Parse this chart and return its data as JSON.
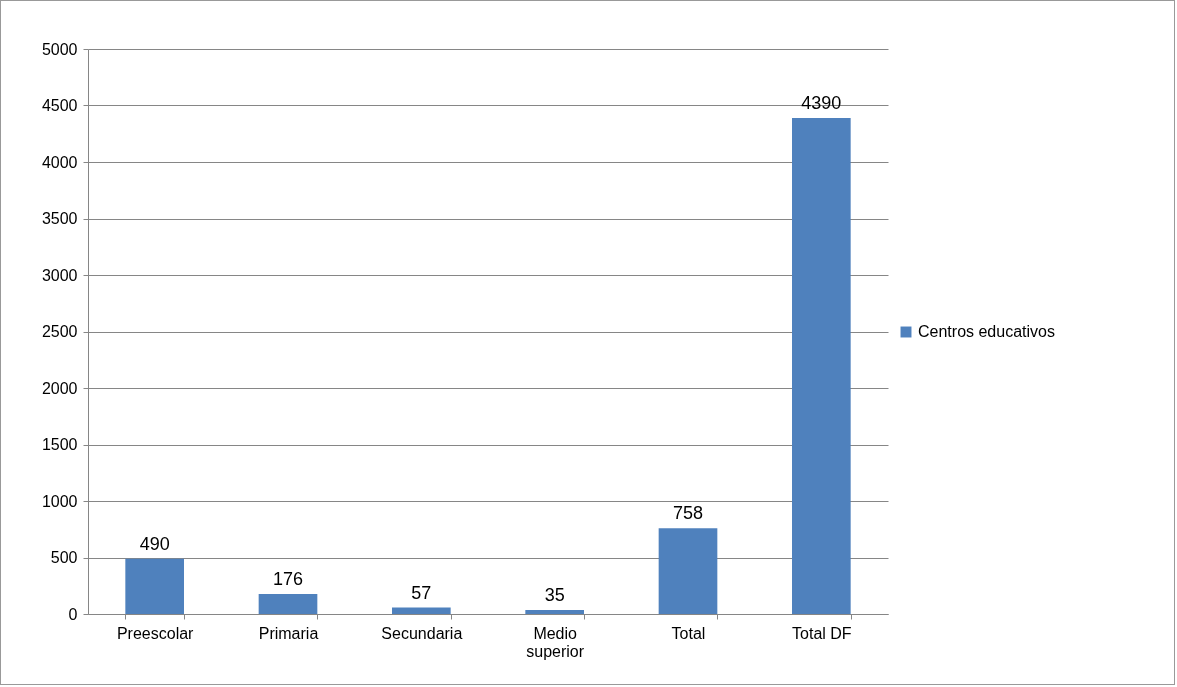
{
  "chart_data": {
    "type": "bar",
    "categories": [
      "Preescolar",
      "Primaria",
      "Secundaria",
      "Medio superior",
      "Total",
      "Total DF"
    ],
    "series": [
      {
        "name": "Centros educativos",
        "color": "#4f81bd",
        "values": [
          490,
          176,
          57,
          35,
          758,
          4390
        ]
      }
    ],
    "ylim": [
      0,
      5000
    ],
    "yticks": [
      0,
      500,
      1000,
      1500,
      2000,
      2500,
      3000,
      3500,
      4000,
      4500,
      5000
    ],
    "grid": "y",
    "legend": "right",
    "data_labels": true
  }
}
